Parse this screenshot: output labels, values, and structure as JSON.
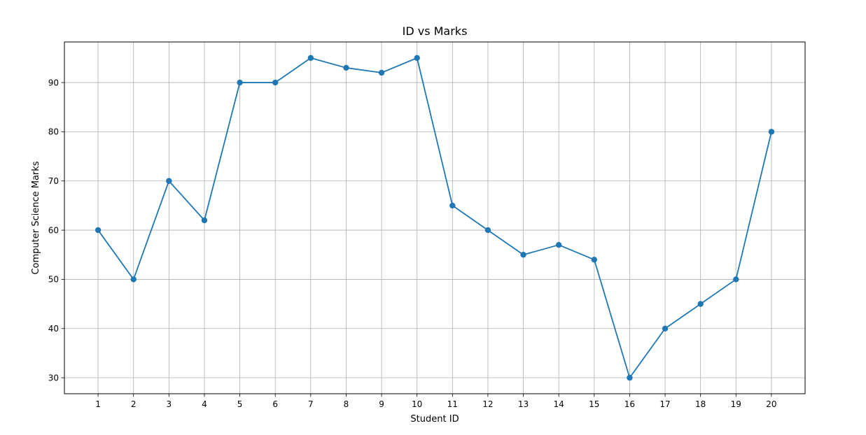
{
  "chart_data": {
    "type": "line",
    "title": "ID vs Marks",
    "xlabel": "Student ID",
    "ylabel": "Computer Science Marks",
    "x": [
      1,
      2,
      3,
      4,
      5,
      6,
      7,
      8,
      9,
      10,
      11,
      12,
      13,
      14,
      15,
      16,
      17,
      18,
      19,
      20
    ],
    "series": [
      {
        "values": [
          60,
          50,
          70,
          62,
          90,
          90,
          95,
          93,
          92,
          95,
          65,
          60,
          55,
          57,
          54,
          30,
          40,
          45,
          50,
          80
        ],
        "color": "#1f77b4",
        "marker": "circle"
      }
    ],
    "xticks": [
      "1",
      "2",
      "3",
      "4",
      "5",
      "6",
      "7",
      "8",
      "9",
      "10",
      "11",
      "12",
      "13",
      "14",
      "15",
      "16",
      "17",
      "18",
      "19",
      "20"
    ],
    "yticks": [
      "30",
      "40",
      "50",
      "60",
      "70",
      "80",
      "90"
    ],
    "xlim": [
      0.05,
      20.95
    ],
    "ylim": [
      26.75,
      98.25
    ],
    "grid": true
  }
}
